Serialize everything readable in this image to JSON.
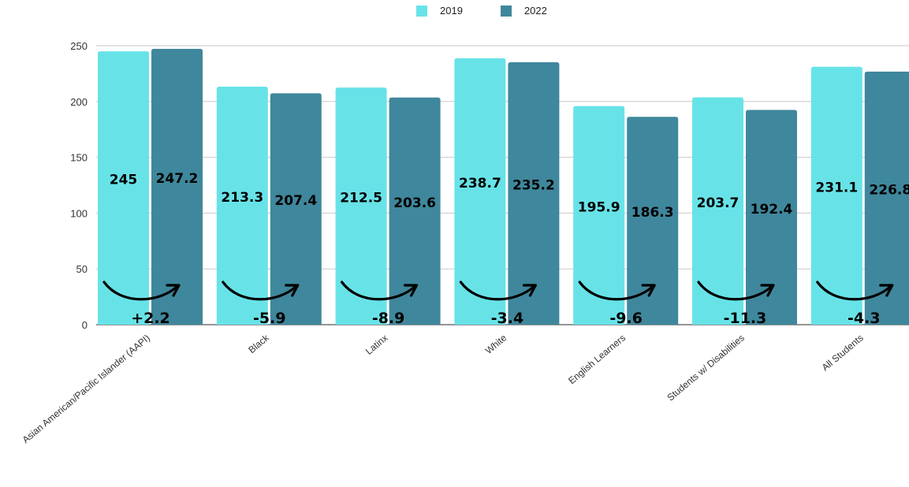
{
  "chart_data": {
    "type": "bar",
    "title": "",
    "xlabel": "",
    "ylabel": "",
    "ylim": [
      0,
      250
    ],
    "yticks": [
      0,
      50,
      100,
      150,
      200,
      250
    ],
    "grid": true,
    "legend_position": "top-center",
    "categories": [
      "Asian American/Pacific Islander (AAPI)",
      "Black",
      "Latinx",
      "White",
      "English Learners",
      "Students w/ Disabilities",
      "All Students"
    ],
    "series": [
      {
        "name": "2019",
        "color": "#67e3e8",
        "values": [
          245,
          213.3,
          212.5,
          238.7,
          195.9,
          203.7,
          231.1
        ]
      },
      {
        "name": "2022",
        "color": "#3f879c",
        "values": [
          247.2,
          207.4,
          203.6,
          235.2,
          186.3,
          192.4,
          226.8
        ]
      }
    ],
    "changes": [
      "+2.2",
      "-5.9",
      "-8.9",
      "-3.4",
      "-9.6",
      "-11.3",
      "-4.3"
    ],
    "annotations": "curved arrow from 2019 bar to 2022 bar with change value"
  }
}
